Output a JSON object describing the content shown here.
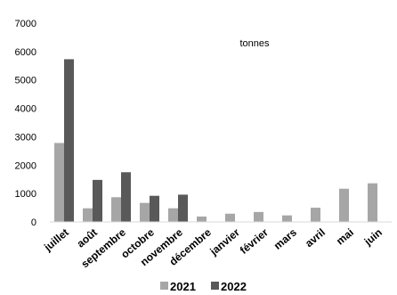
{
  "chart_data": {
    "type": "bar",
    "annotation": "tonnes",
    "categories": [
      "juillet",
      "août",
      "septembre",
      "octobre",
      "novembre",
      "décembre",
      "janvier",
      "février",
      "mars",
      "avril",
      "mai",
      "juin"
    ],
    "series": [
      {
        "name": "2021",
        "color": "#a6a6a6",
        "values": [
          2780,
          480,
          870,
          670,
          480,
          190,
          290,
          350,
          230,
          500,
          1170,
          1360
        ]
      },
      {
        "name": "2022",
        "color": "#595959",
        "values": [
          5730,
          1480,
          1750,
          920,
          960,
          null,
          null,
          null,
          null,
          null,
          null,
          null
        ]
      }
    ],
    "ylim": [
      0,
      7000
    ],
    "yticks": [
      0,
      1000,
      2000,
      3000,
      4000,
      5000,
      6000,
      7000
    ],
    "grid": false,
    "legend_position": "bottom"
  }
}
